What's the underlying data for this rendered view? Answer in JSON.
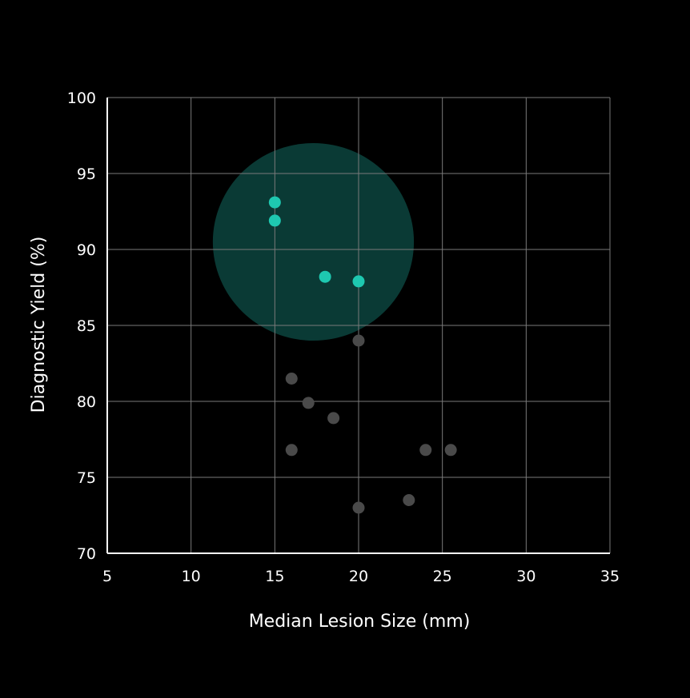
{
  "chart_data": {
    "type": "scatter",
    "title": "",
    "xlabel": "Median Lesion Size (mm)",
    "ylabel": "Diagnostic Yield (%)",
    "xlim": [
      5,
      35
    ],
    "ylim": [
      70,
      100
    ],
    "xticks": [
      "5",
      "10",
      "15",
      "20",
      "25",
      "30",
      "35"
    ],
    "yticks": [
      "70",
      "75",
      "80",
      "85",
      "90",
      "95",
      "100"
    ],
    "grid": true,
    "legend": "none",
    "colors": {
      "background": "#000000",
      "highlight_point": "#1ec8b0",
      "other_point": "#4a4a4a",
      "highlight_region": "#0a3a35",
      "gridline": "#7a7a7a",
      "axis": "#ffffff",
      "text": "#ffffff"
    },
    "highlight_region": {
      "center": [
        17.3,
        90.5
      ],
      "radius_x": 6.0,
      "radius_y": 6.5
    },
    "series": [
      {
        "group": "highlighted",
        "points": [
          {
            "x": 15.0,
            "y": 93.1
          },
          {
            "x": 15.0,
            "y": 91.9
          },
          {
            "x": 18.0,
            "y": 88.2
          },
          {
            "x": 20.0,
            "y": 87.9
          }
        ]
      },
      {
        "group": "other",
        "points": [
          {
            "x": 20.0,
            "y": 84.0
          },
          {
            "x": 16.0,
            "y": 81.5
          },
          {
            "x": 17.0,
            "y": 79.9
          },
          {
            "x": 18.5,
            "y": 78.9
          },
          {
            "x": 16.0,
            "y": 76.8
          },
          {
            "x": 24.0,
            "y": 76.8
          },
          {
            "x": 25.5,
            "y": 76.8
          },
          {
            "x": 23.0,
            "y": 73.5
          },
          {
            "x": 20.0,
            "y": 73.0
          }
        ]
      }
    ]
  }
}
